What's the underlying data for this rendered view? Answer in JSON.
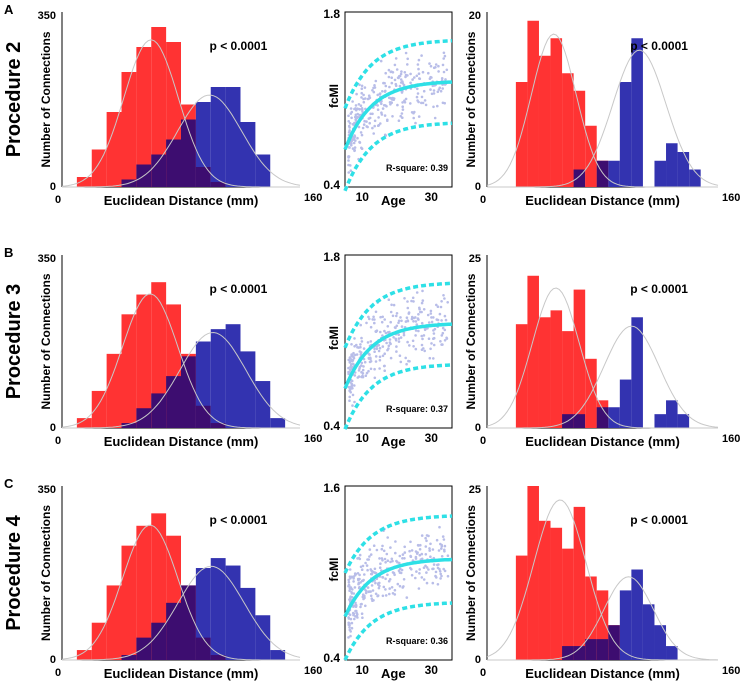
{
  "figure": {
    "colors": {
      "red": "#ff3333",
      "blue": "#3333b0",
      "overlap": "#3d0d70",
      "fit": "#2ee0e6",
      "scatter": "#b8bde8",
      "gaussian": "#c8c8c8"
    },
    "rows": [
      {
        "letter": "A",
        "procedure": "Procedure 2",
        "pvalue_left": "p < 0.0001",
        "pvalue_right": "p < 0.0001",
        "rsquare": "R-square: 0.39"
      },
      {
        "letter": "B",
        "procedure": "Procedure 3",
        "pvalue_left": "p < 0.0001",
        "pvalue_right": "p < 0.0001",
        "rsquare": "R-square: 0.37"
      },
      {
        "letter": "C",
        "procedure": "Procedure 4",
        "pvalue_left": "p < 0.0001",
        "pvalue_right": "p < 0.0001",
        "rsquare": "R-square: 0.36"
      }
    ]
  },
  "chart_data": [
    {
      "type": "bar",
      "panel": "A-left",
      "title": "",
      "xlabel": "Euclidean Distance (mm)",
      "ylabel": "Number of Connections",
      "xlim": [
        0,
        160
      ],
      "ylim": [
        0,
        350
      ],
      "xticks": [
        "0",
        "160"
      ],
      "yticks": [
        "0",
        "350"
      ],
      "annotation": "p < 0.0001",
      "bin_start": 10,
      "bin_width": 10,
      "series": [
        {
          "name": "red",
          "values": [
            20,
            75,
            150,
            230,
            280,
            320,
            290,
            165,
            40,
            10,
            0,
            0,
            0,
            0
          ]
        },
        {
          "name": "blue",
          "values": [
            0,
            0,
            0,
            15,
            45,
            65,
            95,
            135,
            170,
            200,
            200,
            130,
            65,
            0
          ]
        }
      ]
    },
    {
      "type": "scatter",
      "panel": "A-middle",
      "xlabel": "Age",
      "ylabel": "fcMI",
      "xlim": [
        5,
        36
      ],
      "ylim": [
        0.4,
        1.8
      ],
      "xticks": [
        "10",
        "30"
      ],
      "yticks": [
        "0.4",
        "1.8"
      ],
      "annotation": "R-square: 0.39",
      "fit": {
        "low": 0.7,
        "high": 1.25,
        "k": 0.13,
        "band": 0.33
      }
    },
    {
      "type": "bar",
      "panel": "A-right",
      "xlabel": "Euclidean Distance (mm)",
      "ylabel": "Number of Connections",
      "xlim": [
        0,
        160
      ],
      "ylim": [
        0,
        20
      ],
      "xticks": [
        "0",
        "160"
      ],
      "yticks": [
        "0",
        "20"
      ],
      "annotation": "p < 0.0001",
      "bin_start": 20,
      "bin_width": 8,
      "series": [
        {
          "name": "red",
          "values": [
            12,
            19,
            15,
            17,
            13,
            11,
            7,
            3,
            0,
            0,
            0,
            0,
            0,
            0
          ]
        },
        {
          "name": "blue",
          "values": [
            0,
            0,
            0,
            0,
            0,
            2,
            0,
            3,
            3,
            12,
            17,
            0,
            3,
            5,
            4,
            2
          ]
        }
      ]
    },
    {
      "type": "bar",
      "panel": "B-left",
      "xlabel": "Euclidean Distance (mm)",
      "ylabel": "Number of Connections",
      "xlim": [
        0,
        160
      ],
      "ylim": [
        0,
        350
      ],
      "xticks": [
        "0",
        "160"
      ],
      "yticks": [
        "0",
        "350"
      ],
      "annotation": "p < 0.0001",
      "bin_start": 10,
      "bin_width": 10,
      "series": [
        {
          "name": "red",
          "values": [
            20,
            75,
            150,
            230,
            270,
            295,
            250,
            150,
            45,
            10,
            0,
            0,
            0,
            0
          ]
        },
        {
          "name": "blue",
          "values": [
            0,
            0,
            0,
            10,
            40,
            70,
            105,
            145,
            175,
            200,
            210,
            155,
            95,
            20
          ]
        }
      ]
    },
    {
      "type": "scatter",
      "panel": "B-middle",
      "xlabel": "Age",
      "ylabel": "fcMI",
      "xlim": [
        5,
        36
      ],
      "ylim": [
        0.4,
        1.8
      ],
      "xticks": [
        "10",
        "30"
      ],
      "yticks": [
        "0.4",
        "1.8"
      ],
      "annotation": "R-square: 0.37",
      "fit": {
        "low": 0.72,
        "high": 1.25,
        "k": 0.13,
        "band": 0.33
      }
    },
    {
      "type": "bar",
      "panel": "B-right",
      "xlabel": "Euclidean Distance (mm)",
      "ylabel": "Number of Connections",
      "xlim": [
        0,
        160
      ],
      "ylim": [
        0,
        25
      ],
      "xticks": [
        "0",
        "160"
      ],
      "yticks": [
        "0",
        "25"
      ],
      "annotation": "p < 0.0001",
      "bin_start": 20,
      "bin_width": 8,
      "series": [
        {
          "name": "red",
          "values": [
            15,
            22,
            16,
            17,
            14,
            20,
            10,
            4,
            0,
            0,
            0,
            0,
            0,
            0
          ]
        },
        {
          "name": "blue",
          "values": [
            0,
            0,
            0,
            0,
            2,
            2,
            0,
            3,
            3,
            7,
            16,
            0,
            2,
            4,
            2,
            0
          ]
        }
      ]
    },
    {
      "type": "bar",
      "panel": "C-left",
      "xlabel": "Euclidean Distance (mm)",
      "ylabel": "Number of Connections",
      "xlim": [
        0,
        160
      ],
      "ylim": [
        0,
        350
      ],
      "xticks": [
        "0",
        "160"
      ],
      "yticks": [
        "0",
        "350"
      ],
      "annotation": "p < 0.0001",
      "bin_start": 10,
      "bin_width": 10,
      "series": [
        {
          "name": "red",
          "values": [
            20,
            75,
            150,
            230,
            270,
            295,
            250,
            150,
            45,
            10,
            0,
            0,
            0,
            0
          ]
        },
        {
          "name": "blue",
          "values": [
            0,
            0,
            0,
            10,
            45,
            75,
            115,
            150,
            185,
            205,
            190,
            145,
            90,
            20
          ]
        }
      ]
    },
    {
      "type": "scatter",
      "panel": "C-middle",
      "xlabel": "Age",
      "ylabel": "fcMI",
      "xlim": [
        5,
        36
      ],
      "ylim": [
        0.4,
        1.6
      ],
      "xticks": [
        "10",
        "30"
      ],
      "yticks": [
        "0.4",
        "1.6"
      ],
      "annotation": "R-square: 0.36",
      "fit": {
        "low": 0.7,
        "high": 1.1,
        "k": 0.13,
        "band": 0.3
      }
    },
    {
      "type": "bar",
      "panel": "C-right",
      "xlabel": "Euclidean Distance (mm)",
      "ylabel": "Number of Connections",
      "xlim": [
        0,
        160
      ],
      "ylim": [
        0,
        25
      ],
      "xticks": [
        "0",
        "160"
      ],
      "yticks": [
        "0",
        "25"
      ],
      "annotation": "p < 0.0001",
      "bin_start": 20,
      "bin_width": 8,
      "series": [
        {
          "name": "red",
          "values": [
            15,
            25,
            20,
            19,
            16,
            22,
            12,
            10,
            5,
            0,
            0,
            0,
            0,
            0
          ]
        },
        {
          "name": "blue",
          "values": [
            0,
            0,
            0,
            0,
            2,
            2,
            3,
            3,
            5,
            10,
            13,
            8,
            5,
            2,
            0,
            0
          ]
        }
      ]
    }
  ]
}
